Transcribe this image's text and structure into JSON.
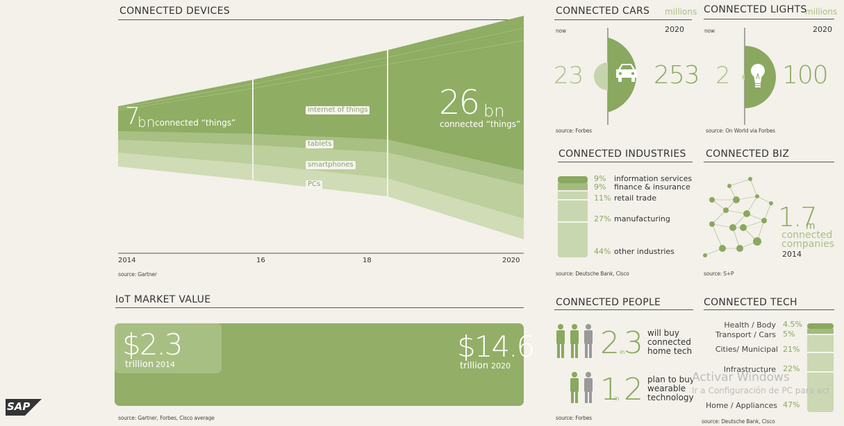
{
  "devices": {
    "title": "CONNECTED DEVICES",
    "stat_now_num": "7",
    "stat_now_unit": "bn",
    "stat_now_text": "connected “things”",
    "stat_2020_num": "26",
    "stat_2020_unit": "bn",
    "stat_2020_text": "connected “things”",
    "source": "source: Gartner"
  },
  "chart_data": [
    {
      "type": "area",
      "title": "CONNECTED DEVICES",
      "x": [
        2014,
        2016,
        2018,
        2020
      ],
      "x_ticks": [
        "2014",
        "16",
        "18",
        "2020"
      ],
      "series": [
        {
          "name": "PCs",
          "values": [
            1.6,
            1.9,
            2.1,
            2.4
          ]
        },
        {
          "name": "smartphones",
          "values": [
            1.5,
            2.2,
            3.0,
            3.9
          ]
        },
        {
          "name": "tablets",
          "values": [
            1.0,
            1.3,
            1.5,
            1.7
          ]
        },
        {
          "name": "internet of things",
          "values": [
            2.9,
            6.3,
            10.4,
            18.0
          ]
        }
      ],
      "totals": {
        "2014": 7,
        "2020": 26
      }
    },
    {
      "type": "bar",
      "title": "IoT MARKET VALUE",
      "categories": [
        "2014",
        "2020"
      ],
      "values": [
        2.3,
        14.6
      ],
      "unit": "trillion"
    },
    {
      "type": "pie",
      "title": "CONNECTED CARS",
      "categories": [
        "now",
        "2020"
      ],
      "values": [
        23,
        253
      ],
      "unit": "millions"
    },
    {
      "type": "pie",
      "title": "CONNECTED LIGHTS",
      "categories": [
        "now",
        "2020"
      ],
      "values": [
        2,
        100
      ],
      "unit": "millions"
    },
    {
      "type": "bar",
      "title": "CONNECTED INDUSTRIES",
      "categories": [
        "information services",
        "finance & insurance",
        "retail trade",
        "manufacturing",
        "other industries"
      ],
      "values": [
        9,
        9,
        11,
        27,
        44
      ]
    },
    {
      "type": "bar",
      "title": "CONNECTED TECH",
      "categories": [
        "Health / Body",
        "Transport / Cars",
        "Cities/ Municipal",
        "Infrastructure",
        "Home / Appliances"
      ],
      "values": [
        4.5,
        5,
        21,
        22,
        47
      ]
    }
  ],
  "market": {
    "title": "IoT MARKET VALUE",
    "v2014": "$2.3",
    "u2014": "trillion",
    "y2014": "2014",
    "v2020": "$14.6",
    "u2020": "trillion",
    "y2020": "2020",
    "source": "source: Gartner, Forbes, Cisco average"
  },
  "cars": {
    "title": "CONNECTED CARS",
    "unit": "millions",
    "now_label": "now",
    "year_label": "2020",
    "now_value": "23",
    "future_value": "253",
    "source": "source: Forbes"
  },
  "lights": {
    "title": "CONNECTED LIGHTS",
    "unit": "millions",
    "now_label": "now",
    "year_label": "2020",
    "now_value": "2",
    "future_value": "100",
    "source": "source: On World via Forbes"
  },
  "industries": {
    "title": "CONNECTED INDUSTRIES",
    "items": [
      {
        "pct": "9%",
        "label": "information services"
      },
      {
        "pct": "9%",
        "label": "finance & insurance"
      },
      {
        "pct": "11%",
        "label": "retail trade"
      },
      {
        "pct": "27%",
        "label": "manufacturing"
      },
      {
        "pct": "44%",
        "label": "other industries"
      }
    ],
    "source": "source: Deutsche Bank, Cisco"
  },
  "biz": {
    "title": "CONNECTED BIZ",
    "value": "1.7",
    "unit": "m",
    "line1": "connected",
    "line2": "companies",
    "year": "2014",
    "source": "source: S+P"
  },
  "people": {
    "title": "CONNECTED PEOPLE",
    "row1_a": "2",
    "row1_in": "in",
    "row1_b": "3",
    "row1_text1": "will buy",
    "row1_text2": "connected",
    "row1_text3": "home tech",
    "row2_a": "1",
    "row2_in": "in",
    "row2_b": "2",
    "row2_text1": "plan to buy",
    "row2_text2": "wearable",
    "row2_text3": "technology",
    "source": "source: Forbes"
  },
  "tech": {
    "title": "CONNECTED TECH",
    "items": [
      {
        "label": "Health / Body",
        "pct": "4.5%"
      },
      {
        "label": "Transport / Cars",
        "pct": "5%"
      },
      {
        "label": "Cities/ Municipal",
        "pct": "21%"
      },
      {
        "label": "Infrastructure",
        "pct": "22%"
      },
      {
        "label": "Home / Appliances",
        "pct": "47%"
      }
    ],
    "source": "source: Deutsche Bank, Cisco"
  },
  "logo": "SAP",
  "watermark": {
    "line1": "Activar Windows",
    "line2": "Ir a Configuración de PC para act"
  },
  "colors": {
    "background": "#f3f1ea",
    "iot": "#8fad63",
    "tablets": "#a8c083",
    "smartphones": "#bccf9c",
    "pcs": "#cfdcb6",
    "market_box": "#93ae67"
  }
}
